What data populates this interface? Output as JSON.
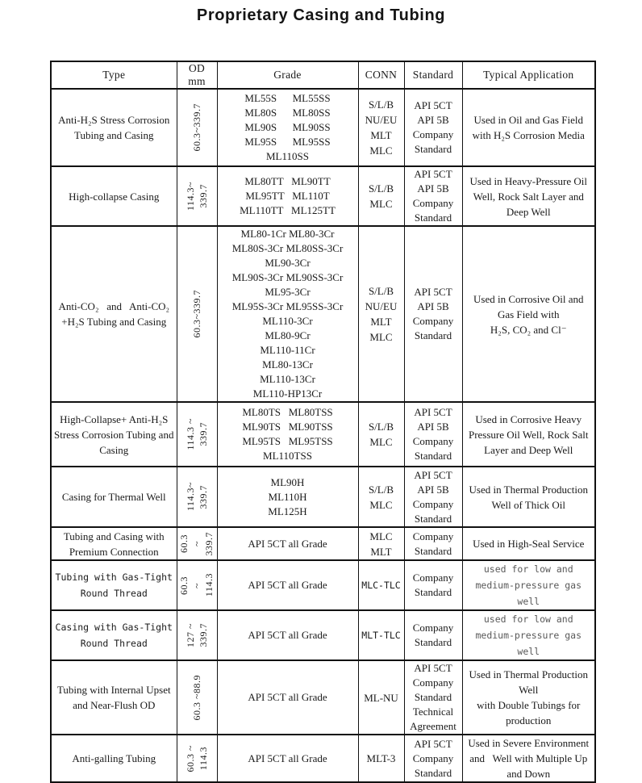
{
  "title": "Proprietary Casing and Tubing",
  "table": {
    "headers": [
      "Type",
      "OD mm",
      "Grade",
      "CONN",
      "Standard",
      "Typical Application"
    ],
    "rows": [
      {
        "type": "Anti-H₂S Stress Corrosion\nTubing and Casing",
        "od_segments": [
          "60.3~339.7"
        ],
        "grade": "ML55S      ML55SS\nML80S      ML80SS\nML90S      ML90SS\nML95S      ML95SS\nML110SS",
        "conn": "S/L/B\nNU/EU\nMLT\nMLC",
        "standard": "API 5CT\nAPI 5B\nCompany\nStandard",
        "application": "Used in Oil and Gas Field\nwith H₂S Corrosion Media",
        "mono": false,
        "app_gray": false
      },
      {
        "type": "High-collapse Casing",
        "od_segments": [
          "114.3~",
          "339.7"
        ],
        "grade": "ML80TT   ML90TT\nML95TT   ML110T\nML110TT   ML125TT",
        "conn": "S/L/B\nMLC",
        "standard": "API 5CT\nAPI 5B\nCompany\nStandard",
        "application": "Used in Heavy-Pressure Oil\nWell, Rock Salt Layer and\nDeep Well",
        "mono": false,
        "app_gray": false
      },
      {
        "type": "Anti-CO₂   and   Anti-CO₂\n+H₂S Tubing and Casing",
        "od_segments": [
          "60.3~339.7"
        ],
        "grade": "ML80-1Cr ML80-3Cr\nML80S-3Cr ML80SS-3Cr\nML90-3Cr\nML90S-3Cr ML90SS-3Cr\nML95-3Cr\nML95S-3Cr ML95SS-3Cr\nML110-3Cr\nML80-9Cr\nML110-11Cr\nML80-13Cr\nML110-13Cr\nML110-HP13Cr",
        "conn": "S/L/B\nNU/EU\nMLT\nMLC",
        "standard": "API 5CT\nAPI 5B\nCompany\nStandard",
        "application": "Used in Corrosive Oil and\nGas Field with\nH₂S, CO₂ and Cl⁻",
        "mono": false,
        "app_gray": false
      },
      {
        "type": "High-Collapse+ Anti-H₂S\nStress Corrosion Tubing and\nCasing",
        "od_segments": [
          "114.3 ~",
          "339.7"
        ],
        "grade": "ML80TS   ML80TSS\nML90TS   ML90TSS\nML95TS   ML95TSS\nML110TSS",
        "conn": "S/L/B\nMLC",
        "standard": "API 5CT\nAPI 5B\nCompany\nStandard",
        "application": "Used in Corrosive Heavy\nPressure Oil Well, Rock Salt\nLayer and Deep Well",
        "mono": false,
        "app_gray": false
      },
      {
        "type": "Casing for Thermal Well",
        "od_segments": [
          "114.3~",
          "339.7"
        ],
        "grade": "ML90H\nML110H\nML125H",
        "conn": "S/L/B\nMLC",
        "standard": "API 5CT\nAPI 5B\nCompany\nStandard",
        "application": "Used in Thermal Production\nWell of Thick Oil",
        "mono": false,
        "app_gray": false
      },
      {
        "type": "Tubing and Casing with\nPremium Connection",
        "od_segments": [
          "60.3",
          "~",
          "339.7"
        ],
        "grade": "API 5CT all Grade",
        "conn": "MLC\nMLT",
        "standard": "Company\nStandard",
        "application": "Used in High-Seal Service",
        "mono": false,
        "app_gray": false
      },
      {
        "type": "Tubing with Gas-Tight\nRound Thread",
        "od_segments": [
          "60.3",
          "~",
          "114.3"
        ],
        "grade": "API 5CT all Grade",
        "conn": "MLC-TLC",
        "standard": "Company\nStandard",
        "application": "used for low and\nmedium-pressure gas well",
        "mono": true,
        "app_gray": true
      },
      {
        "type": "Casing with Gas-Tight\nRound Thread",
        "od_segments": [
          "127 ~",
          "339.7"
        ],
        "grade": "API 5CT all Grade",
        "conn": "MLT-TLC",
        "standard": "Company\nStandard",
        "application": "used for low and\nmedium-pressure gas well",
        "mono": true,
        "app_gray": true
      },
      {
        "type": "Tubing with Internal Upset\nand Near-Flush OD",
        "od_segments": [
          "60.3 ~88.9"
        ],
        "grade": "API 5CT all Grade",
        "conn": "ML-NU",
        "standard": "API 5CT\nCompany\nStandard\nTechnical\nAgreement",
        "application": "Used in Thermal Production\nWell\nwith Double Tubings for\nproduction",
        "mono": false,
        "app_gray": false
      },
      {
        "type": "Anti-galling Tubing",
        "od_segments": [
          "60.3 ~",
          "114.3"
        ],
        "grade": "API 5CT all Grade",
        "conn": "MLT-3",
        "standard": "API 5CT\nCompany\nStandard",
        "application": "Used in Severe Environment\nand   Well with Multiple Up\nand Down",
        "mono": false,
        "app_gray": false
      }
    ]
  },
  "colors": {
    "text": "#1a1a1a",
    "gray_text": "#595959",
    "border": "#111111",
    "background": "#ffffff"
  }
}
